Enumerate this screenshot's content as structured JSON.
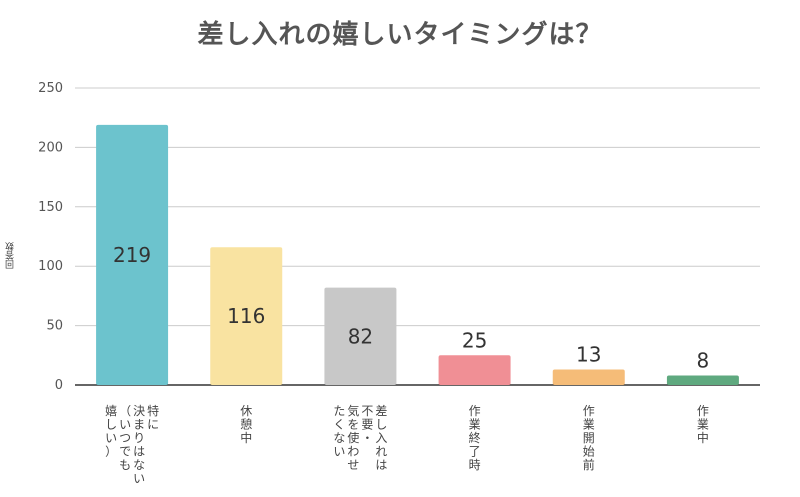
{
  "chart_data": {
    "type": "bar",
    "title": "差し入れの嬉しいタイミングは？",
    "ylabel": "回答数",
    "xlabel": "",
    "ylim": [
      0,
      250
    ],
    "yticks": [
      0,
      50,
      100,
      150,
      200,
      250
    ],
    "grid": true,
    "categories": [
      "特に決まりはない（いつでも嬉しい）",
      "休憩中",
      "差し入れは不要・気を使わせたくない",
      "作業終了時",
      "作業開始前",
      "作業中"
    ],
    "category_lines": [
      [
        "特に",
        "決まりはない",
        "（いつでも",
        "嬉しい）"
      ],
      [
        "休憩中"
      ],
      [
        "差し入れは",
        "不要・",
        "気を使わせ",
        "たくない"
      ],
      [
        "作業終了時"
      ],
      [
        "作業開始前"
      ],
      [
        "作業中"
      ]
    ],
    "values": [
      219,
      116,
      82,
      25,
      13,
      8
    ],
    "colors": [
      "#6cc3cd",
      "#f9e3a1",
      "#c8c8c8",
      "#f08f95",
      "#f5bc78",
      "#5fa97f"
    ],
    "grid_color": "#cccccc",
    "axis_color": "#333333"
  }
}
